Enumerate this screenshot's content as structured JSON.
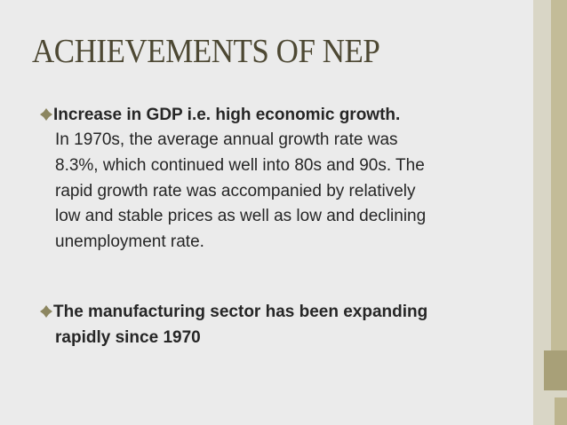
{
  "slide": {
    "title": "ACHIEVEMENTS OF NEP",
    "bullets": [
      {
        "heading": "Increase in GDP i.e. high economic growth.",
        "body_lines": [
          "In 1970s, the average annual growth rate was",
          "8.3%, which continued well into 80s and 90s. The",
          "rapid growth rate was accompanied by relatively",
          "low and stable prices as well as low and declining",
          "unemployment rate."
        ]
      },
      {
        "heading_lines": [
          "The manufacturing sector has been expanding",
          "rapidly since 1970"
        ]
      }
    ]
  }
}
